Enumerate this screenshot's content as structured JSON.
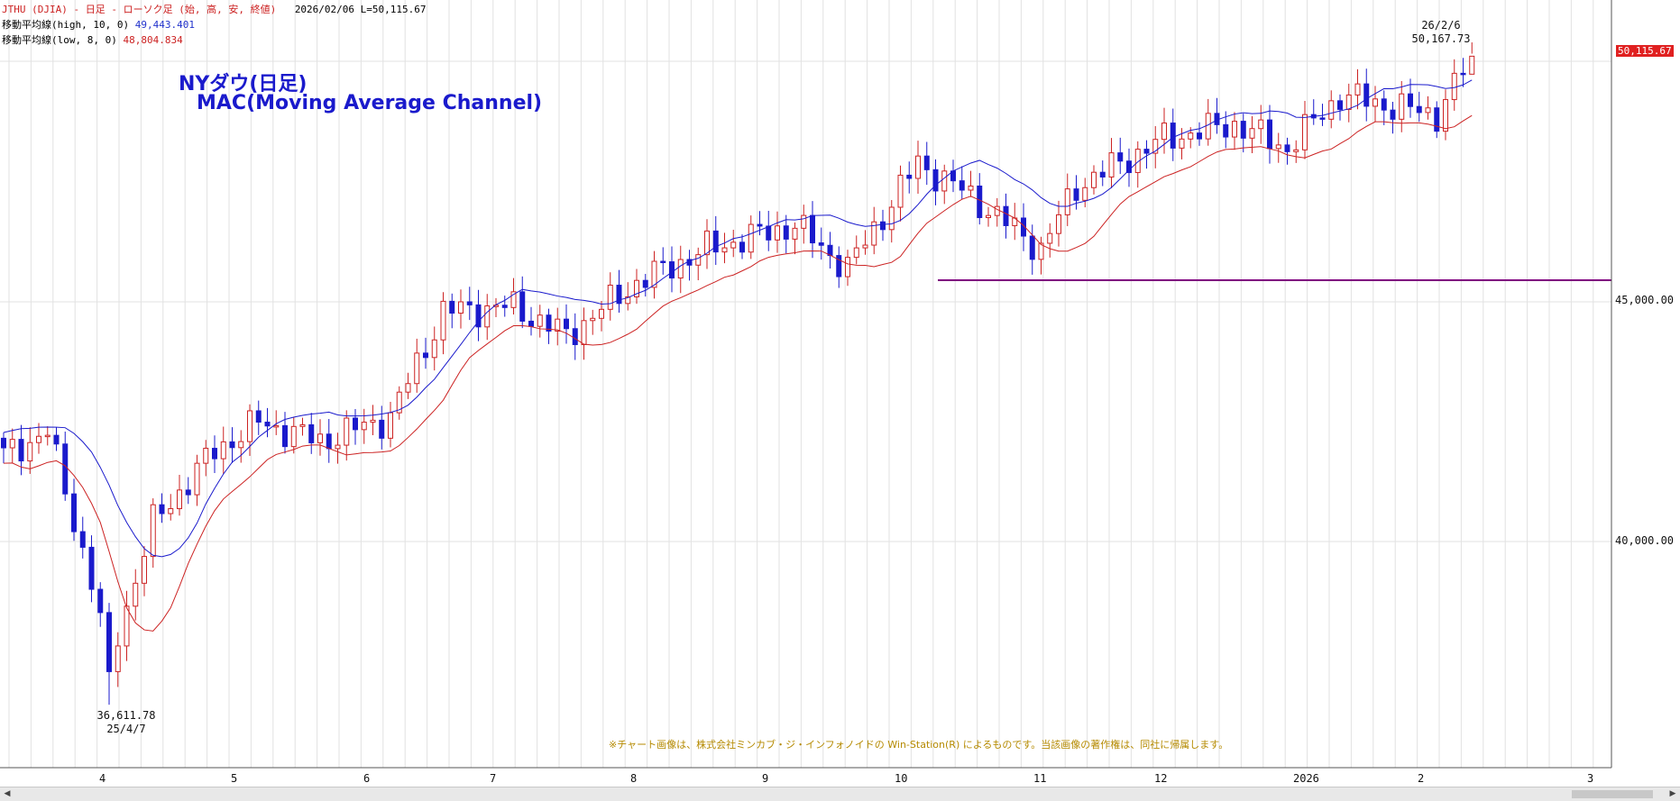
{
  "header": {
    "line1_title": "JTHU (DJIA) - 日足 - ローソク足 (始, 高, 安, 終値)",
    "line1_info": "2026/02/06 L=50,115.67",
    "line2_label": "移動平均線(high, 10, 0)",
    "line2_value": "49,443.401",
    "line3_label": "移動平均線(low, 8, 0)",
    "line3_value": "48,804.834"
  },
  "title_line1": "NYダウ(日足)",
  "title_line2": "MAC(Moving Average Channel)",
  "annotation_high": {
    "date": "26/2/6",
    "value": "50,167.73"
  },
  "annotation_low": {
    "value": "36,611.78",
    "date": "25/4/7"
  },
  "copyright": "※チャート画像は、株式会社ミンカブ・ジ・インフォノイドの Win-Station(R) によるものです。当該画像の著作権は、同社に帰属します。",
  "current_price_tag": "50,115.67",
  "colors": {
    "up": "#cc2222",
    "down": "#1a1acc",
    "ma_high": "#1a1acc",
    "ma_low": "#cc2222",
    "support": "#800080"
  },
  "chart_data": {
    "type": "candlestick",
    "y_ticks": [
      "45,000.00",
      "40,000.00"
    ],
    "ylim": [
      36000,
      51200
    ],
    "x_ticks": [
      "4",
      "5",
      "6",
      "7",
      "8",
      "9",
      "10",
      "11",
      "12",
      "2026",
      "2",
      "3"
    ],
    "grid": true,
    "series": [
      {
        "name": "移動平均線(high, 10, 0)",
        "last": 49443.401
      },
      {
        "name": "移動平均線(low, 8, 0)",
        "last": 48804.834
      }
    ],
    "waypoints": [
      {
        "x": 0,
        "close": 41800
      },
      {
        "x": 5,
        "close": 42300
      },
      {
        "x": 10,
        "close": 39200
      },
      {
        "x": 12,
        "close": 37500
      },
      {
        "x": 17,
        "close": 40400
      },
      {
        "x": 24,
        "close": 41900
      },
      {
        "x": 29,
        "close": 42500
      },
      {
        "x": 36,
        "close": 42100
      },
      {
        "x": 44,
        "close": 42600
      },
      {
        "x": 50,
        "close": 44800
      },
      {
        "x": 58,
        "close": 44900
      },
      {
        "x": 64,
        "close": 44300
      },
      {
        "x": 72,
        "close": 45400
      },
      {
        "x": 80,
        "close": 46100
      },
      {
        "x": 90,
        "close": 46600
      },
      {
        "x": 96,
        "close": 45700
      },
      {
        "x": 104,
        "close": 47900
      },
      {
        "x": 110,
        "close": 47200
      },
      {
        "x": 118,
        "close": 46100
      },
      {
        "x": 122,
        "close": 47400
      },
      {
        "x": 132,
        "close": 48400
      },
      {
        "x": 140,
        "close": 48700
      },
      {
        "x": 146,
        "close": 48200
      },
      {
        "x": 152,
        "close": 49300
      },
      {
        "x": 160,
        "close": 49000
      },
      {
        "x": 163,
        "close": 48900
      },
      {
        "x": 167,
        "close": 50115
      }
    ],
    "low_point": {
      "date": "25/4/7",
      "value": 36611.78
    },
    "high_point": {
      "date": "26/2/6",
      "value": 50167.73
    },
    "support_line": 45450
  }
}
